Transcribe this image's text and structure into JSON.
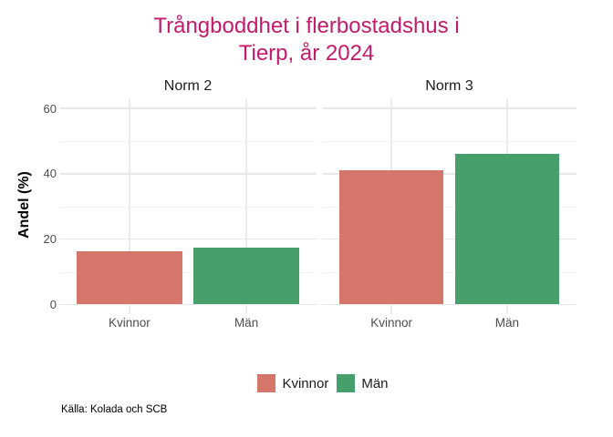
{
  "title": {
    "line1": "Trångboddhet i flerbostadshus i",
    "line2": "Tierp, år 2024",
    "color": "#C41A6B"
  },
  "caption": "Källa: Kolada och SCB",
  "legend": {
    "items": [
      {
        "label": "Kvinnor",
        "color": "#D4766A"
      },
      {
        "label": "Män",
        "color": "#47A06C"
      }
    ]
  },
  "chart_data": {
    "type": "bar",
    "title": "Trångboddhet i flerbostadshus i Tierp, år 2024",
    "facets": [
      {
        "name": "Norm 2",
        "categories": [
          "Kvinnor",
          "Män"
        ],
        "values": [
          16.4,
          17.5
        ]
      },
      {
        "name": "Norm 3",
        "categories": [
          "Kvinnor",
          "Män"
        ],
        "values": [
          41.1,
          46.1
        ]
      }
    ],
    "series_colors": {
      "Kvinnor": "#D4766A",
      "Män": "#47A06C"
    },
    "xlabel": "",
    "ylabel": "Andel (%)",
    "ylim": [
      0,
      60
    ],
    "y_breaks": [
      0,
      20,
      40,
      60
    ],
    "y_minor_breaks": [
      10,
      30,
      50
    ],
    "grid": true,
    "legend_position": "bottom",
    "caption": "Källa: Kolada och SCB"
  }
}
